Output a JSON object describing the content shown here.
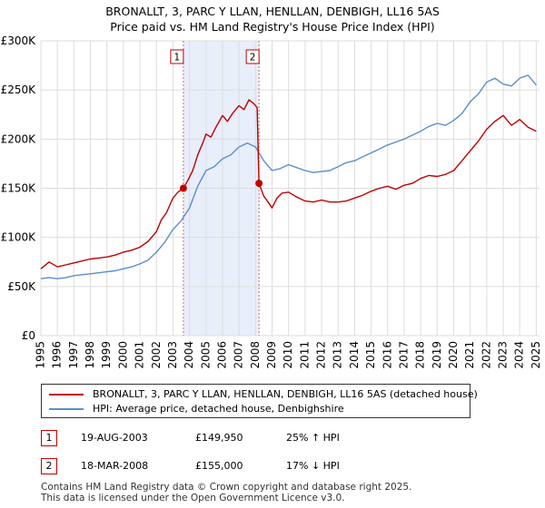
{
  "title_line1": "BRONALLT, 3, PARC Y LLAN, HENLLAN, DENBIGH, LL16 5AS",
  "title_line2": "Price paid vs. HM Land Registry's House Price Index (HPI)",
  "colors": {
    "price": "#c00000",
    "hpi": "#5b8ec9",
    "shade": "#e8eefa",
    "grid": "#dddddd",
    "marker_line": "#e06666"
  },
  "legend": {
    "price_label": "BRONALLT, 3, PARC Y LLAN, HENLLAN, DENBIGH, LL16 5AS (detached house)",
    "hpi_label": "HPI: Average price, detached house, Denbighshire"
  },
  "sales": [
    {
      "id": "1",
      "date": "19-AUG-2003",
      "price": "£149,950",
      "hpi_diff": "25% ↑ HPI"
    },
    {
      "id": "2",
      "date": "18-MAR-2008",
      "price": "£155,000",
      "hpi_diff": "17% ↓ HPI"
    }
  ],
  "footer_line1": "Contains HM Land Registry data © Crown copyright and database right 2025.",
  "footer_line2": "This data is licensed under the Open Government Licence v3.0.",
  "chart_data": {
    "type": "line",
    "title": "BRONALLT, 3, PARC Y LLAN, HENLLAN, DENBIGH, LL16 5AS — Price paid vs. HM Land Registry's House Price Index (HPI)",
    "xlabel": "",
    "ylabel": "",
    "xlim": [
      1995,
      2025.2
    ],
    "ylim": [
      0,
      300000
    ],
    "yticks": [
      0,
      50000,
      100000,
      150000,
      200000,
      250000,
      300000
    ],
    "ytick_labels": [
      "£0",
      "£50K",
      "£100K",
      "£150K",
      "£200K",
      "£250K",
      "£300K"
    ],
    "xticks": [
      1995,
      1996,
      1997,
      1998,
      1999,
      2000,
      2001,
      2002,
      2003,
      2004,
      2005,
      2006,
      2007,
      2008,
      2009,
      2010,
      2011,
      2012,
      2013,
      2014,
      2015,
      2016,
      2017,
      2018,
      2019,
      2020,
      2021,
      2022,
      2023,
      2024,
      2025
    ],
    "grid": true,
    "shaded_period": [
      2003.63,
      2008.21
    ],
    "series": [
      {
        "name": "BRONALLT, 3, PARC Y LLAN, HENLLAN, DENBIGH, LL16 5AS (detached house)",
        "x": [
          1995,
          1995.5,
          1996,
          1996.5,
          1997,
          1997.5,
          1998,
          1998.5,
          1999,
          1999.5,
          2000,
          2000.5,
          2001,
          2001.5,
          2002,
          2002.3,
          2002.6,
          2003,
          2003.3,
          2003.63,
          2003.9,
          2004.2,
          2004.5,
          2004.8,
          2005,
          2005.3,
          2005.6,
          2006,
          2006.3,
          2006.6,
          2007,
          2007.3,
          2007.6,
          2007.9,
          2008.1,
          2008.21,
          2008.5,
          2008.8,
          2009,
          2009.3,
          2009.6,
          2010,
          2010.5,
          2011,
          2011.5,
          2012,
          2012.5,
          2013,
          2013.5,
          2014,
          2014.5,
          2015,
          2015.5,
          2016,
          2016.5,
          2017,
          2017.5,
          2018,
          2018.5,
          2019,
          2019.5,
          2020,
          2020.5,
          2021,
          2021.5,
          2022,
          2022.5,
          2023,
          2023.5,
          2024,
          2024.5,
          2025
        ],
        "values": [
          68000,
          75000,
          70000,
          72000,
          74000,
          76000,
          78000,
          79000,
          80000,
          82000,
          85000,
          87000,
          90000,
          96000,
          106000,
          118000,
          125000,
          140000,
          146000,
          149950,
          158000,
          168000,
          184000,
          196000,
          205000,
          202000,
          212000,
          224000,
          218000,
          226000,
          234000,
          230000,
          240000,
          236000,
          232000,
          155000,
          142000,
          135000,
          130000,
          140000,
          145000,
          146000,
          141000,
          137000,
          136000,
          138000,
          136000,
          136000,
          137000,
          140000,
          143000,
          147000,
          150000,
          152000,
          149000,
          153000,
          155000,
          160000,
          163000,
          162000,
          164000,
          168000,
          178000,
          188000,
          198000,
          210000,
          218000,
          224000,
          214000,
          220000,
          212000,
          208000
        ]
      },
      {
        "name": "HPI: Average price, detached house, Denbighshire",
        "x": [
          1995,
          1995.5,
          1996,
          1996.5,
          1997,
          1997.5,
          1998,
          1998.5,
          1999,
          1999.5,
          2000,
          2000.5,
          2001,
          2001.5,
          2002,
          2002.5,
          2003,
          2003.5,
          2004,
          2004.5,
          2005,
          2005.5,
          2006,
          2006.5,
          2007,
          2007.5,
          2008,
          2008.5,
          2009,
          2009.5,
          2010,
          2010.5,
          2011,
          2011.5,
          2012,
          2012.5,
          2013,
          2013.5,
          2014,
          2014.5,
          2015,
          2015.5,
          2016,
          2016.5,
          2017,
          2017.5,
          2018,
          2018.5,
          2019,
          2019.5,
          2020,
          2020.5,
          2021,
          2021.5,
          2022,
          2022.5,
          2023,
          2023.5,
          2024,
          2024.5,
          2025
        ],
        "values": [
          58000,
          59000,
          58000,
          59000,
          61000,
          62000,
          63000,
          64000,
          65000,
          66000,
          68000,
          70000,
          73000,
          77000,
          85000,
          95000,
          108000,
          117000,
          130000,
          152000,
          168000,
          172000,
          180000,
          184000,
          192000,
          196000,
          192000,
          178000,
          168000,
          170000,
          174000,
          171000,
          168000,
          166000,
          167000,
          168000,
          172000,
          176000,
          178000,
          182000,
          186000,
          190000,
          194000,
          197000,
          200000,
          204000,
          208000,
          213000,
          216000,
          214000,
          219000,
          226000,
          238000,
          246000,
          258000,
          262000,
          256000,
          254000,
          262000,
          265000,
          255000
        ]
      }
    ],
    "markers": [
      {
        "label": "1",
        "x": 2003.63,
        "y": 149950
      },
      {
        "label": "2",
        "x": 2008.21,
        "y": 155000
      }
    ]
  }
}
